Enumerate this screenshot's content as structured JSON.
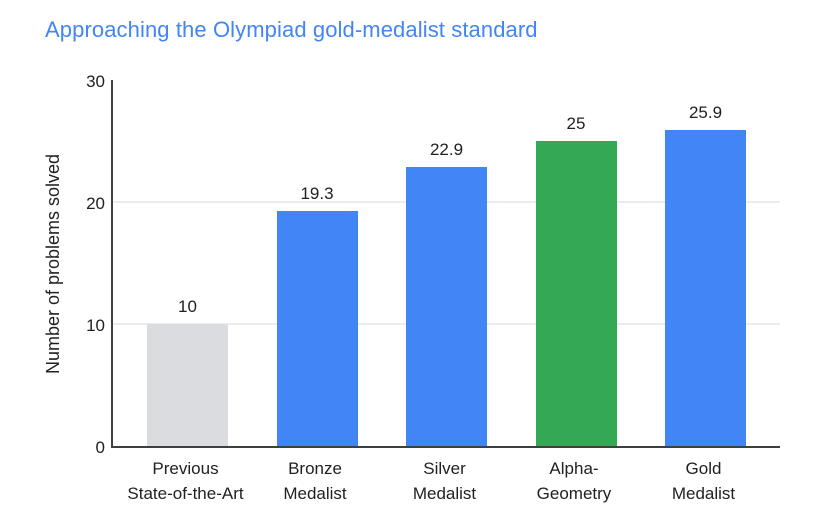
{
  "colors": {
    "title": "#4285F4",
    "text": "#202124",
    "axis": "#3C4043",
    "grid": "#EBECEE",
    "bar_blue": "#4285F4",
    "bar_green": "#34A853",
    "bar_gray": "#DADCE0"
  },
  "chart_data": {
    "type": "bar",
    "title": "Approaching the Olympiad gold-medalist standard",
    "ylabel": "Number of problems solved",
    "xlabel": "",
    "ylim": [
      0,
      30
    ],
    "yticks": [
      0,
      10,
      20,
      30
    ],
    "gridlines_at": [
      10,
      20
    ],
    "grid": true,
    "legend_position": "none",
    "categories": [
      {
        "label": "Previous State-of-the-Art",
        "lines": [
          "Previous",
          "State-of-the-Art"
        ]
      },
      {
        "label": "Bronze Medalist",
        "lines": [
          "Bronze",
          "Medalist"
        ]
      },
      {
        "label": "Silver Medalist",
        "lines": [
          "Silver",
          "Medalist"
        ]
      },
      {
        "label": "Alpha-Geometry",
        "lines": [
          "Alpha-",
          "Geometry"
        ]
      },
      {
        "label": "Gold Medalist",
        "lines": [
          "Gold",
          "Medalist"
        ]
      }
    ],
    "values": [
      10,
      19.3,
      22.9,
      25,
      25.9
    ],
    "value_labels": [
      "10",
      "19.3",
      "22.9",
      "25",
      "25.9"
    ],
    "bar_colors": [
      "#DADCE0",
      "#4285F4",
      "#4285F4",
      "#34A853",
      "#4285F4"
    ]
  }
}
